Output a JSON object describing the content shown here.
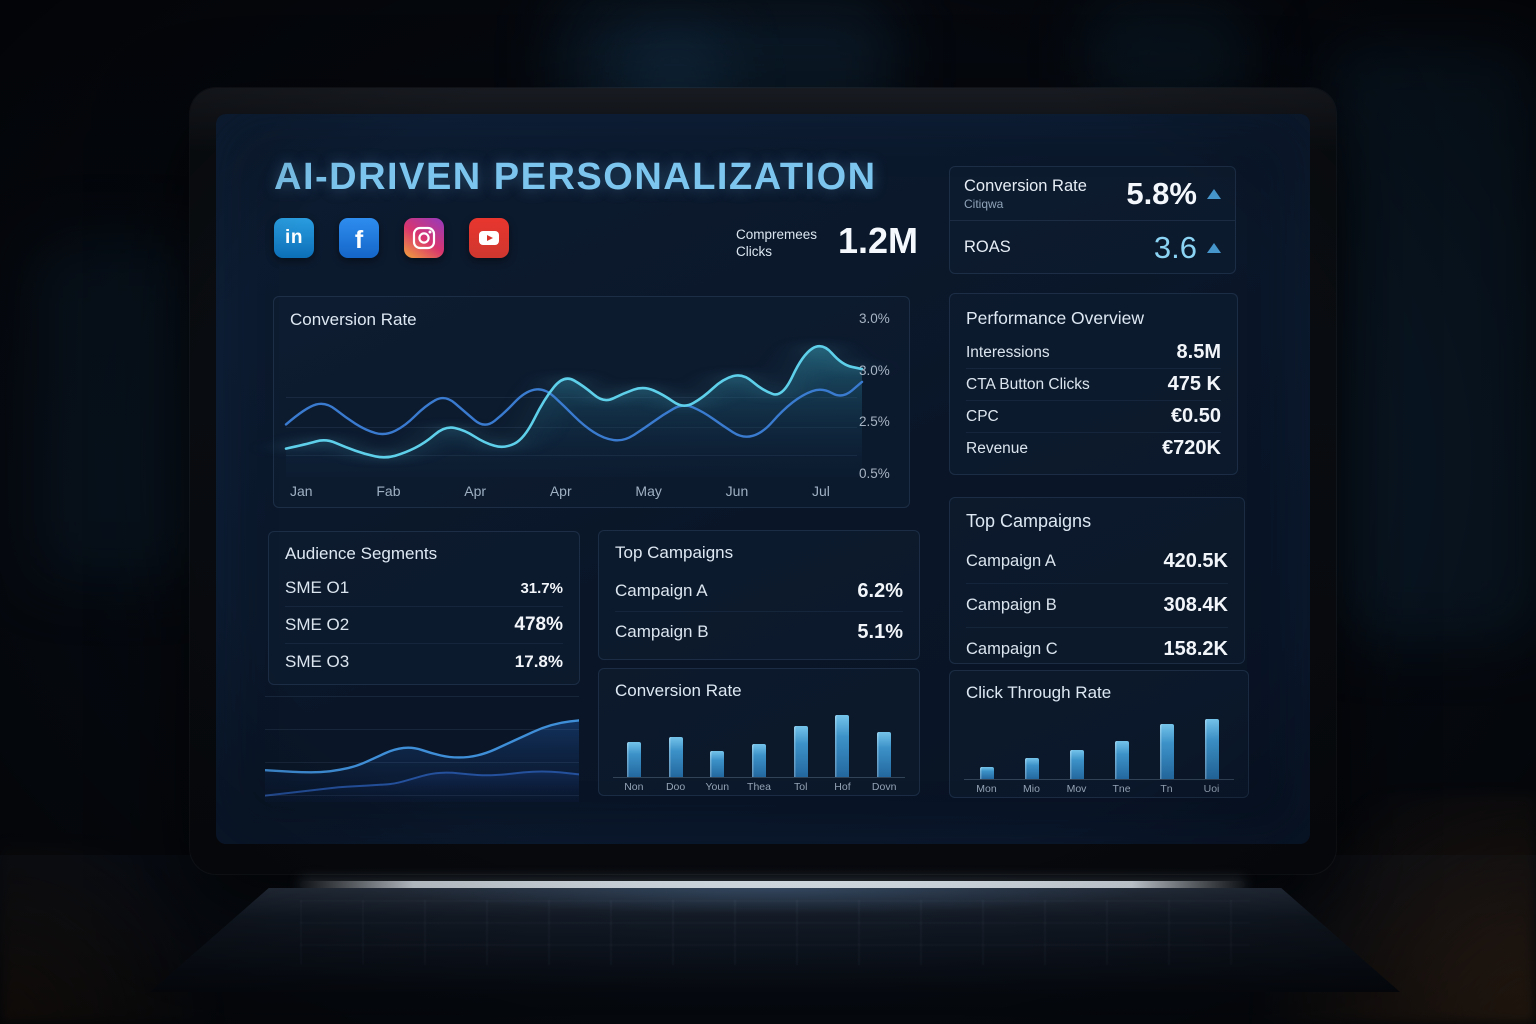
{
  "header": {
    "title": "AI-DRIVEN PERSONALIZATION",
    "social_icons": [
      "linkedin",
      "facebook",
      "instagram",
      "youtube"
    ],
    "clicks_metric": {
      "label_line1": "Compremees",
      "label_line2": "Clicks",
      "value": "1.2M"
    }
  },
  "kpis": {
    "conversion_rate": {
      "label": "Conversion Rate",
      "sublabel": "Citiqwa",
      "value": "5.8%",
      "trend": "up"
    },
    "roas": {
      "label": "ROAS",
      "value": "3.6",
      "trend": "up"
    }
  },
  "performance": {
    "title": "Performance Overview",
    "rows": [
      {
        "label": "Interessions",
        "value": "8.5M"
      },
      {
        "label": "CTA Button Clicks",
        "value": "475 K"
      },
      {
        "label": "CPC",
        "value": "€0.50"
      },
      {
        "label": "Revenue",
        "value": "€720K"
      }
    ]
  },
  "campaigns_right": {
    "title": "Top Campaigns",
    "rows": [
      {
        "label": "Campaign A",
        "value": "420.5K"
      },
      {
        "label": "Campaign B",
        "value": "308.4K"
      },
      {
        "label": "Campaign C",
        "value": "158.2K"
      }
    ]
  },
  "audience": {
    "title": "Audience Segments",
    "rows": [
      {
        "label": "SME O1",
        "value": "31.7%"
      },
      {
        "label": "SME O2",
        "value": "478%"
      },
      {
        "label": "SME O3",
        "value": "17.8%"
      }
    ]
  },
  "campaigns_mid": {
    "title": "Top Campaigns",
    "rows": [
      {
        "label": "Campaign A",
        "value": "6.2%"
      },
      {
        "label": "Campaign B",
        "value": "5.1%"
      }
    ]
  },
  "colors": {
    "accent_cyan": "#5fd0ea",
    "accent_blue": "#3a7bd0",
    "title_blue": "#7cc5ee",
    "bar_blue": "#3c92c8"
  },
  "chart_data": [
    {
      "id": "conversion_line",
      "type": "line",
      "title": "Conversion Rate",
      "x_ticks": [
        "Jan",
        "Fab",
        "Apr",
        "Apr",
        "May",
        "Jun",
        "Jul"
      ],
      "y_ticks": [
        "3.0%",
        "3.0%",
        "2.5%",
        "0.5%"
      ],
      "ylim_note": "values are % of plot height; axis labeled 0.5%–3.0%",
      "grid": true,
      "legend": false,
      "series": [
        {
          "name": "baseline-trend",
          "color": "#3a7bd0",
          "width": 2.4,
          "fill": false,
          "values": [
            37,
            49,
            53,
            42,
            33,
            29,
            36,
            50,
            58,
            46,
            34,
            45,
            60,
            63,
            50,
            36,
            27,
            25,
            34,
            44,
            52,
            46,
            36,
            27,
            31,
            47,
            58,
            63,
            55,
            67
          ]
        },
        {
          "name": "personalized-trend",
          "color": "#5fd0ea",
          "width": 2.6,
          "fill": true,
          "glow": true,
          "fill_from": "rgba(46,140,165,0.55)",
          "fill_to": "rgba(12,45,80,0.06)",
          "values": [
            20,
            23,
            27,
            21,
            16,
            13,
            17,
            24,
            36,
            33,
            24,
            20,
            27,
            55,
            72,
            64,
            52,
            59,
            64,
            58,
            48,
            56,
            69,
            73,
            61,
            56,
            86,
            95,
            79,
            76
          ]
        }
      ]
    },
    {
      "id": "conversion_bars",
      "type": "bar",
      "title": "Conversion Rate",
      "categories": [
        "Non",
        "Doo",
        "Youn",
        "Thea",
        "Tol",
        "Hof",
        "Dovn"
      ],
      "values": [
        55,
        63,
        40,
        52,
        80,
        97,
        70
      ]
    },
    {
      "id": "ctr_bars",
      "type": "bar",
      "title": "Click Through Rate",
      "categories": [
        "Mon",
        "Mio",
        "Mov",
        "Tne",
        "Tn",
        "Uoi"
      ],
      "values": [
        18,
        33,
        45,
        60,
        86,
        94
      ]
    },
    {
      "id": "trend_area",
      "type": "line",
      "title": "",
      "grid": true,
      "series": [
        {
          "name": "secondary",
          "color": "#24509c",
          "width": 2,
          "fill": true,
          "fill_from": "rgba(25,55,115,0.45)",
          "fill_to": "rgba(10,25,55,0.10)",
          "values": [
            6,
            8,
            10,
            12,
            14,
            15,
            16,
            17,
            22,
            27,
            28,
            26,
            25,
            26,
            28,
            29,
            28,
            26
          ]
        },
        {
          "name": "primary",
          "color": "#3f8fd8",
          "width": 2.4,
          "fill": true,
          "fill_from": "rgba(28,80,150,0.50)",
          "fill_to": "rgba(12,35,75,0.12)",
          "values": [
            30,
            29,
            28,
            28,
            30,
            34,
            42,
            50,
            52,
            46,
            42,
            42,
            46,
            54,
            62,
            70,
            75,
            77
          ]
        }
      ]
    }
  ]
}
